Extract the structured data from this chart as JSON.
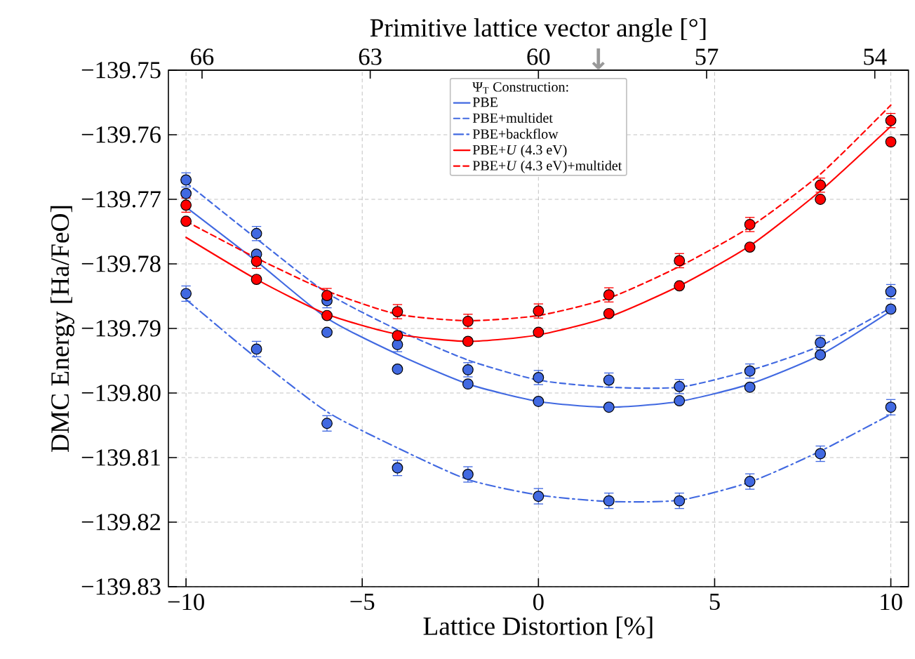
{
  "chart_data": {
    "type": "scatter",
    "xlabel": "Lattice Distortion [%]",
    "ylabel": "DMC Energy [Ha/FeO]",
    "x2label": "Primitive lattice vector angle [°]",
    "legend_title": "Ψ$_{T}$ Construction:",
    "x": [
      -10,
      -8,
      -6,
      -4,
      -2,
      0,
      2,
      4,
      6,
      8,
      10
    ],
    "series": [
      {
        "name": "PBE",
        "type": "line",
        "marker": "none",
        "line_style": "solid",
        "color": "#4169e1",
        "values": [
          -139.7712,
          -139.7796,
          -139.7884,
          -139.794,
          -139.7986,
          -139.8013,
          -139.8022,
          -139.8013,
          -139.7986,
          -139.7941,
          -139.7873
        ]
      },
      {
        "name": "PBE+multidet",
        "type": "line",
        "marker": "none",
        "line_style": "dashed",
        "color": "#4169e1",
        "values": [
          -139.7674,
          -139.7761,
          -139.7845,
          -139.7902,
          -139.7949,
          -139.798,
          -139.7991,
          -139.7991,
          -139.7965,
          -139.7927,
          -139.7868
        ]
      },
      {
        "name": "PBE+backflow",
        "type": "line",
        "marker": "none",
        "line_style": "dashdot",
        "color": "#4169e1",
        "values": [
          -139.7855,
          -139.7946,
          -139.8029,
          -139.8085,
          -139.8134,
          -139.8158,
          -139.8168,
          -139.8166,
          -139.8138,
          -139.809,
          -139.8033
        ]
      },
      {
        "name": "PBE+*U* (4.3 eV)",
        "type": "line",
        "marker": "none",
        "line_style": "solid",
        "color": "#ff0000",
        "values": [
          -139.7759,
          -139.7824,
          -139.7878,
          -139.7909,
          -139.792,
          -139.791,
          -139.7882,
          -139.7834,
          -139.7772,
          -139.7687,
          -139.7587
        ]
      },
      {
        "name": "PBE+*U* (4.3 eV)+multidet",
        "type": "line",
        "marker": "none",
        "line_style": "dashed",
        "color": "#ff0000",
        "values": [
          -139.7734,
          -139.7791,
          -139.7842,
          -139.7878,
          -139.7888,
          -139.788,
          -139.7853,
          -139.7804,
          -139.7743,
          -139.7661,
          -139.7554
        ]
      },
      {
        "color": "#4169e1",
        "values": [
          -139.7691,
          -139.7785,
          -139.7906,
          -139.7963,
          -139.7986,
          -139.8013,
          -139.8022,
          -139.8012,
          -139.7991,
          -139.7941,
          -139.787
        ]
      },
      {
        "color": "#4169e1",
        "values": [
          -139.767,
          -139.7753,
          -139.7857,
          -139.7925,
          -139.7964,
          -139.7976,
          -139.798,
          -139.799,
          -139.7966,
          -139.7922,
          -139.7843
        ],
        "errors": [
          0.0011,
          0.0011,
          0.0011,
          0.0011,
          0.0011,
          0.0011,
          0.0011,
          0.0011,
          0.0011,
          0.0011,
          0.0011
        ]
      },
      {
        "color": "#4169e1",
        "values": [
          -139.7846,
          -139.7932,
          -139.8047,
          -139.8116,
          -139.8126,
          -139.816,
          -139.8167,
          -139.8167,
          -139.8137,
          -139.8094,
          -139.8022
        ],
        "errors": [
          0.0012,
          0.0012,
          0.0012,
          0.0012,
          0.0012,
          0.0012,
          0.0012,
          0.0012,
          0.0012,
          0.0012,
          0.0012
        ]
      },
      {
        "color": "#ff0000",
        "values": [
          -139.7734,
          -139.7824,
          -139.788,
          -139.7911,
          -139.792,
          -139.7906,
          -139.7877,
          -139.7834,
          -139.7774,
          -139.77,
          -139.7611
        ]
      },
      {
        "color": "#ff0000",
        "values": [
          -139.7709,
          -139.7796,
          -139.7849,
          -139.7874,
          -139.7889,
          -139.7873,
          -139.7848,
          -139.7795,
          -139.7739,
          -139.7678,
          -139.7578
        ],
        "errors": [
          0.0011,
          0.0011,
          0.0011,
          0.0011,
          0.0011,
          0.0011,
          0.0011,
          0.0011,
          0.0011,
          0.0011,
          0.0011
        ]
      }
    ],
    "annotations": [
      "↓"
    ],
    "xlim": [
      -10.5,
      10.5
    ],
    "xticks": [
      {
        "value": -10,
        "label": "−10"
      },
      {
        "value": -5,
        "label": "−5"
      },
      0,
      5,
      10
    ],
    "x2lim": [
      66.6,
      53.4
    ],
    "x2ticks": [
      66,
      63,
      60,
      57,
      54
    ],
    "ylim": [
      -139.83,
      -139.75
    ],
    "yticks": [
      {
        "value": -139.83,
        "label": "−139.83"
      },
      {
        "value": -139.82,
        "label": "−139.82"
      },
      {
        "value": -139.81,
        "label": "−139.81"
      },
      {
        "value": -139.8,
        "label": "−139.80"
      },
      {
        "value": -139.79,
        "label": "−139.79"
      },
      {
        "value": -139.78,
        "label": "−139.78"
      },
      {
        "value": -139.77,
        "label": "−139.77"
      },
      {
        "value": -139.76,
        "label": "−139.76"
      },
      {
        "value": -139.75,
        "label": "−139.75"
      }
    ],
    "grid": true,
    "legend": "top",
    "marker": "circle"
  }
}
